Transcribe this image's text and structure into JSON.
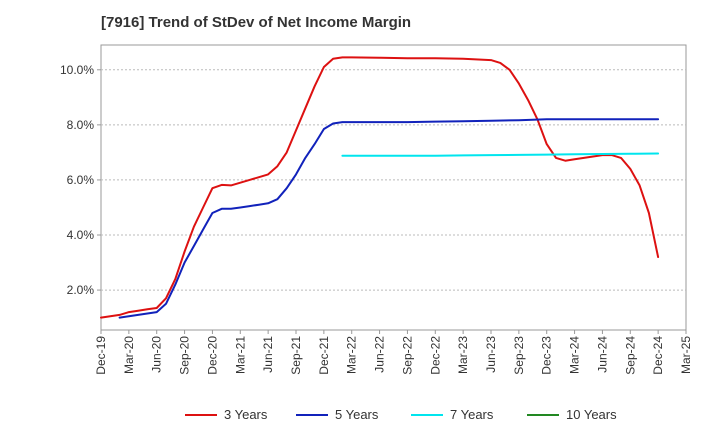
{
  "chart_data": {
    "type": "line",
    "title": "[7916]  Trend of StDev of Net Income Margin",
    "xlabel": "",
    "ylabel": "",
    "x_ticks": [
      "Dec-19",
      "Mar-20",
      "Jun-20",
      "Sep-20",
      "Dec-20",
      "Mar-21",
      "Jun-21",
      "Sep-21",
      "Dec-21",
      "Mar-22",
      "Jun-22",
      "Sep-22",
      "Dec-22",
      "Mar-23",
      "Jun-23",
      "Sep-23",
      "Dec-23",
      "Mar-24",
      "Jun-24",
      "Sep-24",
      "Dec-24",
      "Mar-25"
    ],
    "y_ticks": [
      "2.0%",
      "4.0%",
      "6.0%",
      "8.0%",
      "10.0%"
    ],
    "y_tick_values": [
      2.0,
      4.0,
      6.0,
      8.0,
      10.0
    ],
    "ylim": [
      0.55,
      10.9
    ],
    "grid": true,
    "legend_position": "bottom",
    "series": [
      {
        "name": "3 Years",
        "color": "#dd1111",
        "x": [
          "Dec-19",
          "Jan-20",
          "Feb-20",
          "Mar-20",
          "Apr-20",
          "May-20",
          "Jun-20",
          "Jul-20",
          "Aug-20",
          "Sep-20",
          "Oct-20",
          "Nov-20",
          "Dec-20",
          "Jan-21",
          "Feb-21",
          "Mar-21",
          "Apr-21",
          "May-21",
          "Jun-21",
          "Jul-21",
          "Aug-21",
          "Sep-21",
          "Oct-21",
          "Nov-21",
          "Dec-21",
          "Jan-22",
          "Feb-22",
          "Mar-22",
          "Jun-22",
          "Sep-22",
          "Dec-22",
          "Mar-23",
          "Jun-23",
          "Jul-23",
          "Aug-23",
          "Sep-23",
          "Oct-23",
          "Nov-23",
          "Dec-23",
          "Jan-24",
          "Feb-24",
          "Mar-24",
          "Apr-24",
          "May-24",
          "Jun-24",
          "Jul-24",
          "Aug-24",
          "Sep-24",
          "Oct-24",
          "Nov-24",
          "Dec-24"
        ],
        "values": [
          1.0,
          1.05,
          1.1,
          1.2,
          1.25,
          1.3,
          1.35,
          1.7,
          2.4,
          3.4,
          4.3,
          5.0,
          5.7,
          5.82,
          5.8,
          5.9,
          6.0,
          6.1,
          6.2,
          6.5,
          7.0,
          7.8,
          8.6,
          9.4,
          10.1,
          10.4,
          10.45,
          10.45,
          10.44,
          10.42,
          10.42,
          10.4,
          10.35,
          10.25,
          10.0,
          9.5,
          8.9,
          8.2,
          7.3,
          6.8,
          6.7,
          6.75,
          6.8,
          6.85,
          6.9,
          6.9,
          6.8,
          6.4,
          5.8,
          4.8,
          3.2
        ]
      },
      {
        "name": "5 Years",
        "color": "#1122bb",
        "x": [
          "Feb-20",
          "Mar-20",
          "Apr-20",
          "May-20",
          "Jun-20",
          "Jul-20",
          "Aug-20",
          "Sep-20",
          "Oct-20",
          "Nov-20",
          "Dec-20",
          "Jan-21",
          "Feb-21",
          "Mar-21",
          "Apr-21",
          "May-21",
          "Jun-21",
          "Jul-21",
          "Aug-21",
          "Sep-21",
          "Oct-21",
          "Nov-21",
          "Dec-21",
          "Jan-22",
          "Feb-22",
          "Mar-22",
          "Jun-22",
          "Sep-22",
          "Dec-22",
          "Mar-23",
          "Jun-23",
          "Sep-23",
          "Dec-23",
          "Mar-24",
          "Jun-24",
          "Sep-24",
          "Dec-24"
        ],
        "values": [
          1.0,
          1.05,
          1.1,
          1.15,
          1.2,
          1.5,
          2.2,
          3.0,
          3.6,
          4.2,
          4.8,
          4.95,
          4.95,
          5.0,
          5.05,
          5.1,
          5.15,
          5.3,
          5.7,
          6.2,
          6.8,
          7.3,
          7.85,
          8.05,
          8.1,
          8.1,
          8.1,
          8.1,
          8.12,
          8.13,
          8.15,
          8.17,
          8.2,
          8.2,
          8.2,
          8.2,
          8.2
        ]
      },
      {
        "name": "7 Years",
        "color": "#00e5ee",
        "x": [
          "Feb-22",
          "Mar-22",
          "Jun-22",
          "Sep-22",
          "Dec-22",
          "Mar-23",
          "Jun-23",
          "Sep-23",
          "Dec-23",
          "Mar-24",
          "Jun-24",
          "Sep-24",
          "Dec-24"
        ],
        "values": [
          6.88,
          6.88,
          6.88,
          6.88,
          6.88,
          6.89,
          6.9,
          6.91,
          6.92,
          6.93,
          6.94,
          6.95,
          6.96
        ]
      },
      {
        "name": "10 Years",
        "color": "#228822",
        "x": [],
        "values": []
      }
    ]
  }
}
